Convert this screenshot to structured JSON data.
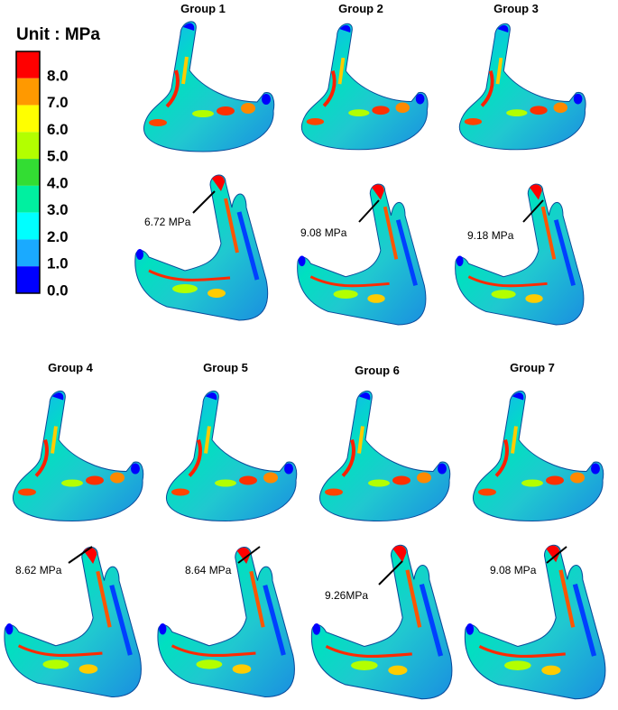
{
  "legend": {
    "title": "Unit : MPa",
    "labels": [
      "8.0",
      "7.0",
      "6.0",
      "5.0",
      "4.0",
      "3.0",
      "2.0",
      "1.0",
      "0.0"
    ],
    "colors": [
      "#ff0000",
      "#ff9900",
      "#ffff00",
      "#b3ff00",
      "#33dd33",
      "#00f0a0",
      "#00ffff",
      "#1aaaff",
      "#0000ff"
    ]
  },
  "groups": [
    {
      "label": "Group 1",
      "peak": "6.72 MPa"
    },
    {
      "label": "Group 2",
      "peak": "9.08 MPa"
    },
    {
      "label": "Group 3",
      "peak": "9.18 MPa"
    },
    {
      "label": "Group 4",
      "peak": "8.62 MPa"
    },
    {
      "label": "Group 5",
      "peak": "8.64 MPa"
    },
    {
      "label": "Group 6",
      "peak": "9.26MPa"
    },
    {
      "label": "Group 7",
      "peak": "9.08 MPa"
    }
  ]
}
